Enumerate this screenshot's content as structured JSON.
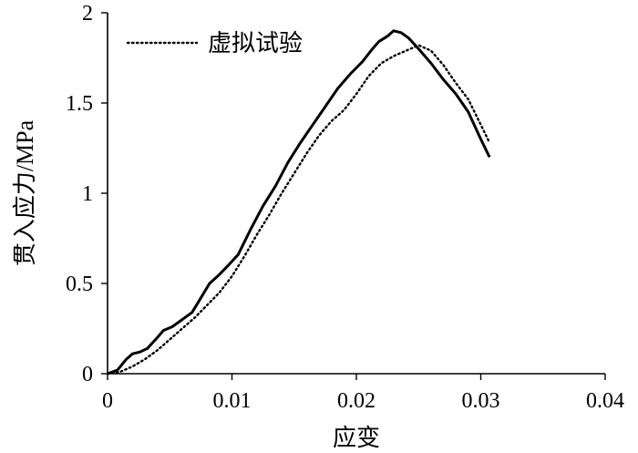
{
  "chart_data": {
    "type": "line",
    "xlabel": "应变",
    "ylabel": "贯入应力/MPa",
    "xlim": [
      0,
      0.04
    ],
    "ylim": [
      0,
      2
    ],
    "x_ticks": [
      "0",
      "0.01",
      "0.02",
      "0.03",
      "0.04"
    ],
    "y_ticks": [
      "0",
      "0.5",
      "1",
      "1.5",
      "2"
    ],
    "grid": false,
    "legend_position": "top-left",
    "series": [
      {
        "name": "",
        "style": "solid",
        "color": "#000000",
        "points": [
          [
            0,
            0
          ],
          [
            0.0008,
            0.02
          ],
          [
            0.0015,
            0.08
          ],
          [
            0.002,
            0.11
          ],
          [
            0.0026,
            0.12
          ],
          [
            0.0032,
            0.14
          ],
          [
            0.004,
            0.2
          ],
          [
            0.0045,
            0.24
          ],
          [
            0.0052,
            0.26
          ],
          [
            0.006,
            0.3
          ],
          [
            0.0068,
            0.34
          ],
          [
            0.0075,
            0.42
          ],
          [
            0.0082,
            0.5
          ],
          [
            0.009,
            0.55
          ],
          [
            0.0097,
            0.6
          ],
          [
            0.0105,
            0.66
          ],
          [
            0.0115,
            0.8
          ],
          [
            0.0125,
            0.93
          ],
          [
            0.0135,
            1.04
          ],
          [
            0.0145,
            1.17
          ],
          [
            0.0155,
            1.28
          ],
          [
            0.0165,
            1.38
          ],
          [
            0.0175,
            1.48
          ],
          [
            0.0185,
            1.58
          ],
          [
            0.0195,
            1.66
          ],
          [
            0.0205,
            1.73
          ],
          [
            0.0213,
            1.8
          ],
          [
            0.0218,
            1.84
          ],
          [
            0.0225,
            1.87
          ],
          [
            0.023,
            1.9
          ],
          [
            0.0236,
            1.89
          ],
          [
            0.0242,
            1.86
          ],
          [
            0.025,
            1.8
          ],
          [
            0.026,
            1.72
          ],
          [
            0.027,
            1.63
          ],
          [
            0.028,
            1.55
          ],
          [
            0.029,
            1.45
          ],
          [
            0.03,
            1.3
          ],
          [
            0.0307,
            1.2
          ]
        ]
      },
      {
        "name": "虚拟试验",
        "style": "dotted",
        "color": "#000000",
        "points": [
          [
            0,
            0
          ],
          [
            0.001,
            0.01
          ],
          [
            0.002,
            0.04
          ],
          [
            0.003,
            0.08
          ],
          [
            0.004,
            0.13
          ],
          [
            0.005,
            0.19
          ],
          [
            0.006,
            0.25
          ],
          [
            0.007,
            0.31
          ],
          [
            0.008,
            0.38
          ],
          [
            0.009,
            0.45
          ],
          [
            0.01,
            0.54
          ],
          [
            0.011,
            0.65
          ],
          [
            0.012,
            0.77
          ],
          [
            0.013,
            0.88
          ],
          [
            0.014,
            1.0
          ],
          [
            0.015,
            1.11
          ],
          [
            0.016,
            1.22
          ],
          [
            0.017,
            1.32
          ],
          [
            0.018,
            1.4
          ],
          [
            0.019,
            1.46
          ],
          [
            0.02,
            1.55
          ],
          [
            0.021,
            1.65
          ],
          [
            0.022,
            1.72
          ],
          [
            0.023,
            1.76
          ],
          [
            0.024,
            1.79
          ],
          [
            0.025,
            1.82
          ],
          [
            0.026,
            1.79
          ],
          [
            0.027,
            1.71
          ],
          [
            0.028,
            1.61
          ],
          [
            0.029,
            1.52
          ],
          [
            0.03,
            1.38
          ],
          [
            0.0307,
            1.28
          ]
        ]
      }
    ]
  }
}
